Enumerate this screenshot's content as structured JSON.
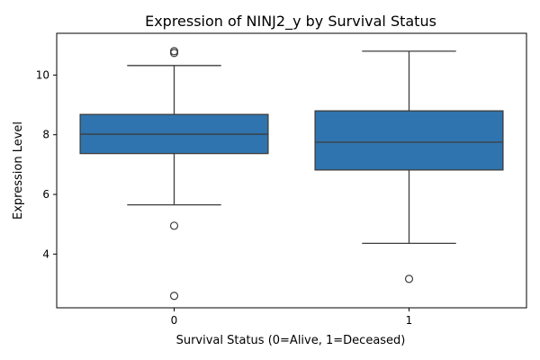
{
  "chart_data": {
    "type": "box",
    "title": "Expression of NINJ2_y by Survival Status",
    "xlabel": "Survival Status (0=Alive, 1=Deceased)",
    "ylabel": "Expression Level",
    "categories": [
      "0",
      "1"
    ],
    "ylim": [
      2.2,
      11.4
    ],
    "yticks": [
      4,
      6,
      8,
      10
    ],
    "box_color": "#2f74ae",
    "line_color": "#3d3d3d",
    "boxes": [
      {
        "category": "0",
        "whisker_low": 5.65,
        "q1": 7.37,
        "median": 8.02,
        "q3": 8.68,
        "whisker_high": 10.32,
        "outliers": [
          10.8,
          10.74,
          4.95,
          2.6
        ]
      },
      {
        "category": "1",
        "whisker_low": 4.36,
        "q1": 6.82,
        "median": 7.75,
        "q3": 8.8,
        "whisker_high": 10.8,
        "outliers": [
          3.17
        ]
      }
    ]
  }
}
